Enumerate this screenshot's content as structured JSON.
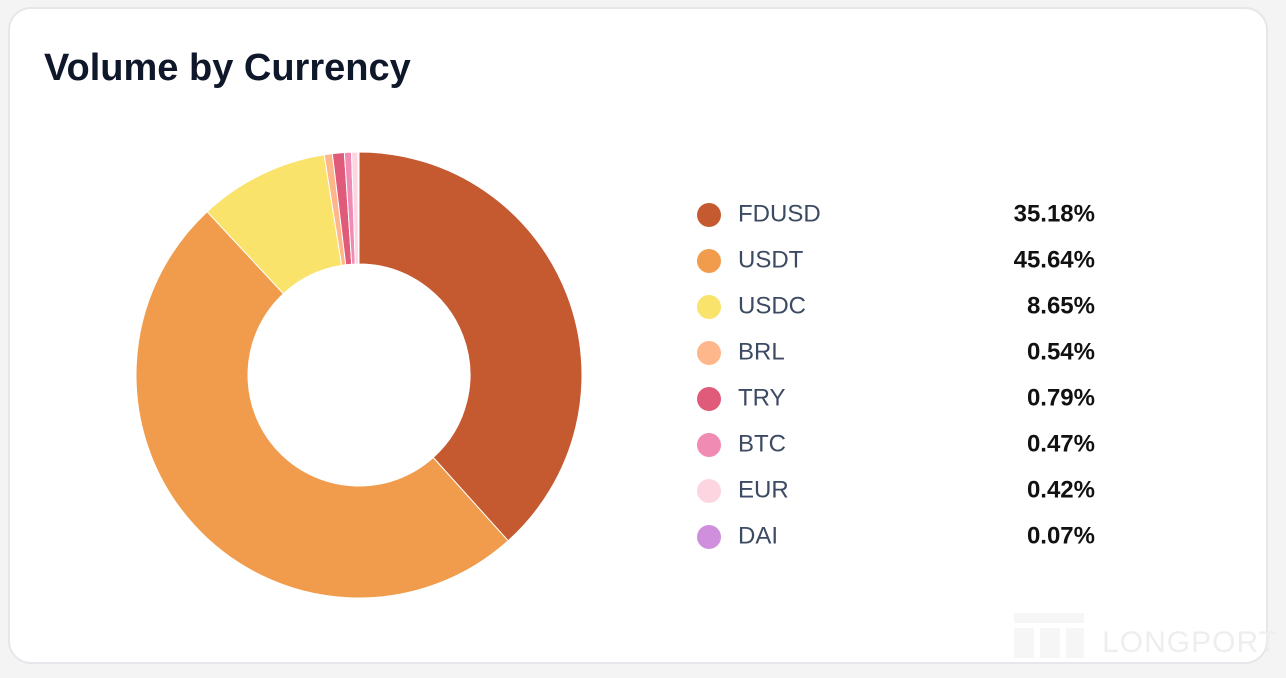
{
  "chart_data": {
    "type": "donut",
    "title": "Volume by Currency",
    "categories": [
      "FDUSD",
      "USDT",
      "USDC",
      "BRL",
      "TRY",
      "BTC",
      "EUR",
      "DAI"
    ],
    "values": [
      35.18,
      45.64,
      8.65,
      0.54,
      0.79,
      0.47,
      0.42,
      0.07
    ],
    "value_labels": [
      "35.18%",
      "45.64%",
      "8.65%",
      "0.54%",
      "0.79%",
      "0.47%",
      "0.42%",
      "0.07%"
    ],
    "colors": [
      "#c55a30",
      "#f09c4c",
      "#fae36a",
      "#fdb78a",
      "#e05a7a",
      "#f08bb4",
      "#fdd5e0",
      "#d08fdc"
    ],
    "watermark": "LONGPORT"
  }
}
